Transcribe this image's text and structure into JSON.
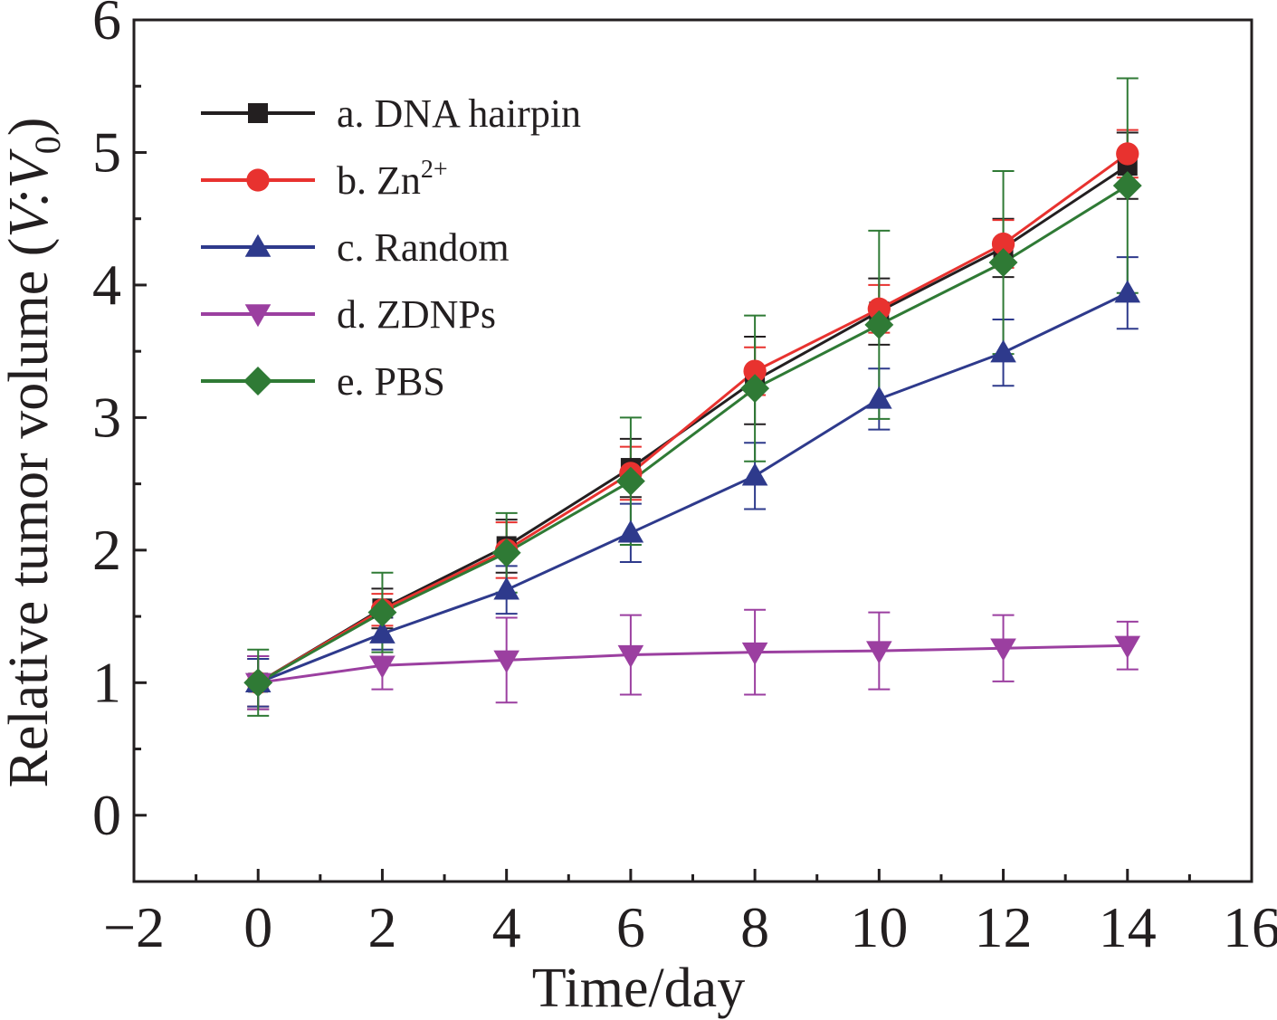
{
  "chart_data": {
    "type": "line",
    "title": "",
    "xlabel": "Time/day",
    "ylabel_prefix": "Relative tumor volume (",
    "ylabel_var1": "V",
    "ylabel_sep": ":",
    "ylabel_var2": "V",
    "ylabel_sub": "0",
    "ylabel_suffix": ")",
    "xlim": [
      -2,
      16
    ],
    "ylim": [
      -0.5,
      6
    ],
    "xticks": [
      "−2",
      "0",
      "2",
      "4",
      "6",
      "8",
      "10",
      "12",
      "14",
      "16"
    ],
    "yticks": [
      "0",
      "1",
      "2",
      "3",
      "4",
      "5",
      "6"
    ],
    "grid": false,
    "legend_position": "top-left",
    "x": [
      0,
      2,
      4,
      6,
      8,
      10,
      12,
      14
    ],
    "series": [
      {
        "name": "a. DNA hairpin",
        "color": "#231f20",
        "marker": "square",
        "values": [
          1.0,
          1.56,
          2.03,
          2.62,
          3.28,
          3.8,
          4.28,
          4.9
        ],
        "errors": [
          0.2,
          0.15,
          0.2,
          0.22,
          0.33,
          0.25,
          0.22,
          0.25
        ]
      },
      {
        "name": "b. Zn",
        "name_sup": "2+",
        "color": "#e8322f",
        "marker": "circle",
        "values": [
          1.0,
          1.55,
          2.0,
          2.58,
          3.35,
          3.82,
          4.31,
          4.99
        ],
        "errors": [
          0.18,
          0.12,
          0.21,
          0.2,
          0.18,
          0.18,
          0.18,
          0.18
        ]
      },
      {
        "name": "c. Random",
        "color": "#2e3a8c",
        "marker": "triangle-up",
        "values": [
          1.0,
          1.37,
          1.7,
          2.13,
          2.56,
          3.14,
          3.49,
          3.94
        ],
        "errors": [
          0.18,
          0.12,
          0.18,
          0.22,
          0.25,
          0.23,
          0.25,
          0.27
        ]
      },
      {
        "name": "d. ZDNPs",
        "color": "#9b3fa0",
        "marker": "triangle-down",
        "values": [
          1.0,
          1.13,
          1.17,
          1.21,
          1.23,
          1.24,
          1.26,
          1.28
        ],
        "errors": [
          0.2,
          0.18,
          0.32,
          0.3,
          0.32,
          0.29,
          0.25,
          0.18
        ]
      },
      {
        "name": "e. PBS",
        "color": "#2f7a35",
        "marker": "diamond",
        "values": [
          1.0,
          1.53,
          1.98,
          2.52,
          3.22,
          3.7,
          4.17,
          4.75
        ],
        "errors": [
          0.25,
          0.3,
          0.3,
          0.48,
          0.55,
          0.71,
          0.69,
          0.81
        ]
      }
    ]
  }
}
